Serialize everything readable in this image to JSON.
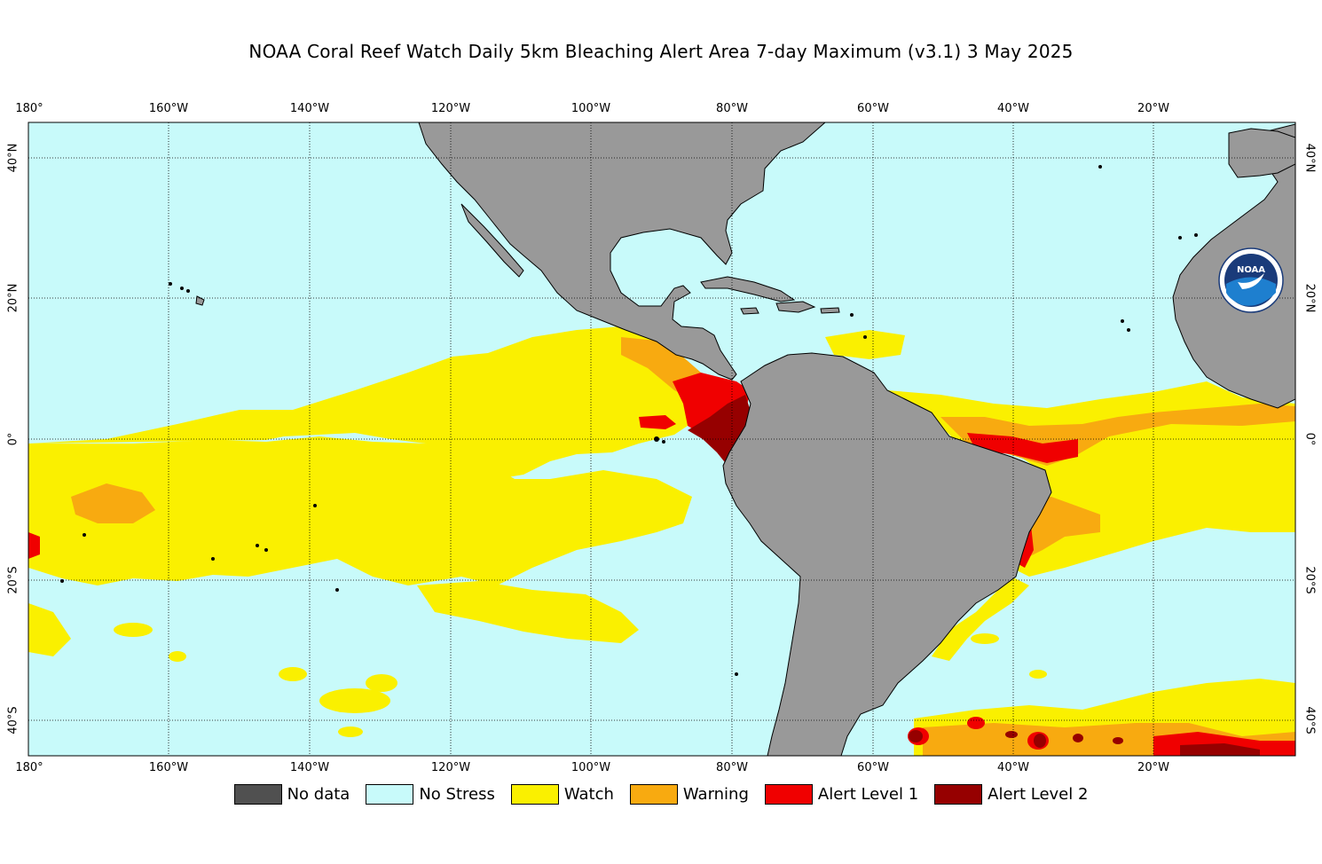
{
  "title": "NOAA Coral Reef Watch Daily 5km Bleaching Alert Area 7-day Maximum  (v3.1)   3 May 2025",
  "longitude_ticks": [
    "180°",
    "160°W",
    "140°W",
    "120°W",
    "100°W",
    "80°W",
    "60°W",
    "40°W",
    "20°W"
  ],
  "latitude_ticks": [
    "40°N",
    "20°N",
    "0°",
    "20°S",
    "40°S"
  ],
  "logo_text": "NOAA",
  "legend": [
    {
      "label": "No data",
      "color": "#505050"
    },
    {
      "label": "No Stress",
      "color": "#c8fafa"
    },
    {
      "label": "Watch",
      "color": "#faf000"
    },
    {
      "label": "Warning",
      "color": "#f8aa10"
    },
    {
      "label": "Alert Level 1",
      "color": "#f00000"
    },
    {
      "label": "Alert Level 2",
      "color": "#960000"
    }
  ],
  "colors": {
    "ocean": "#c8fafa",
    "land": "#999999",
    "watch": "#faf000",
    "warning": "#f8aa10",
    "alert1": "#f00000",
    "alert2": "#960000"
  }
}
